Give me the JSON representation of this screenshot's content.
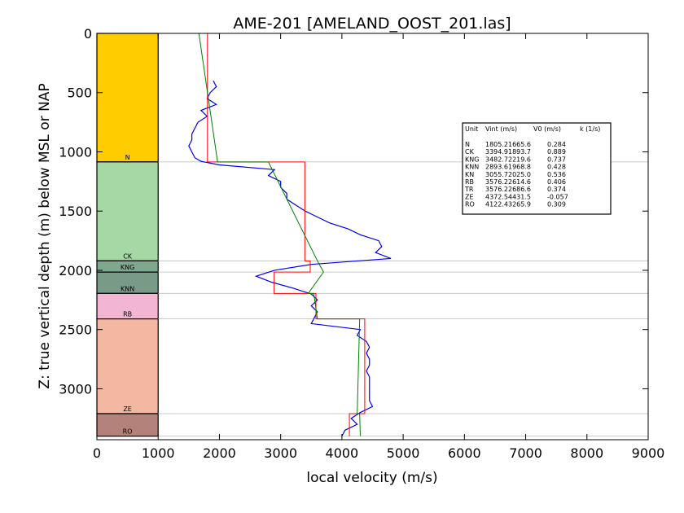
{
  "chart_data": {
    "type": "line",
    "title": "AME-201 [AMELAND_OOST_201.las]",
    "xlabel": "local velocity (m/s)",
    "ylabel": "Z: true vertical depth (m) below MSL or NAP",
    "xlim": [
      0,
      9000
    ],
    "ylim": [
      3430,
      0
    ],
    "y_inverted": true,
    "x_ticks": [
      "0",
      "1000",
      "2000",
      "3000",
      "4000",
      "5000",
      "6000",
      "7000",
      "8000",
      "9000"
    ],
    "y_ticks": [
      "0",
      "500",
      "1000",
      "1500",
      "2000",
      "2500",
      "3000"
    ],
    "grid": false,
    "colors": {
      "log": "#0000ee",
      "interval_velocity": "#ff0000",
      "model_velocity": "#008000",
      "boundary": "#bbbbbb"
    },
    "units": [
      {
        "name": "N",
        "top": 0,
        "base": 1085,
        "color": "#FFCC00",
        "vint": 1805.2,
        "v0": 1665.6,
        "k": 0.284
      },
      {
        "name": "CK",
        "top": 1085,
        "base": 1920,
        "color": "#A6D8A6",
        "vint": 3394.9,
        "v0": 1893.7,
        "k": 0.889
      },
      {
        "name": "KNG",
        "top": 1920,
        "base": 2015,
        "color": "#7FA88F",
        "vint": 3482.7,
        "v0": 2219.6,
        "k": 0.737
      },
      {
        "name": "KNN",
        "top": 2015,
        "base": 2195,
        "color": "#7A9A88",
        "vint": 2893.6,
        "v0": 1968.8,
        "k": 0.428
      },
      {
        "name": "RB",
        "top": 2195,
        "base": 2410,
        "color": "#F2B6D2",
        "vint": 3576.2,
        "v0": 2614.6,
        "k": 0.406
      },
      {
        "name": "ZE",
        "top": 2410,
        "base": 3210,
        "color": "#F2B8A2",
        "vint": 4372.5,
        "v0": 4431.5,
        "k": -0.057
      },
      {
        "name": "RO",
        "top": 3210,
        "base": 3400,
        "color": "#B3827A",
        "vint": 4122.4,
        "v0": 3265.9,
        "k": 0.309
      }
    ],
    "legend": {
      "placement": "right",
      "header": [
        "Unit",
        "Vint (m/s)",
        "V0 (m/s)",
        "k (1/s)"
      ],
      "rows": [
        [
          "N",
          "1805.2",
          "1665.6",
          "0.284"
        ],
        [
          "CK",
          "3394.9",
          "1893.7",
          "0.889"
        ],
        [
          "KNG",
          "3482.7",
          "2219.6",
          "0.737"
        ],
        [
          "KNN",
          "2893.6",
          "1968.8",
          "0.428"
        ],
        [
          "KN",
          "3055.7",
          "2025.0",
          "0.536"
        ],
        [
          "RB",
          "3576.2",
          "2614.6",
          "0.406"
        ],
        [
          "TR",
          "3576.2",
          "2686.6",
          "0.374"
        ],
        [
          "ZE",
          "4372.5",
          "4431.5",
          "-0.057"
        ],
        [
          "RO",
          "4122.4",
          "3265.9",
          "0.309"
        ]
      ]
    },
    "velocity_log": {
      "depth": [
        400,
        450,
        500,
        550,
        600,
        650,
        700,
        750,
        800,
        850,
        900,
        950,
        1000,
        1050,
        1080,
        1110,
        1150,
        1200,
        1250,
        1300,
        1350,
        1400,
        1450,
        1500,
        1550,
        1600,
        1650,
        1700,
        1750,
        1800,
        1850,
        1900,
        1950,
        2000,
        2050,
        2100,
        2150,
        2200,
        2250,
        2300,
        2350,
        2400,
        2450,
        2500,
        2550,
        2600,
        2650,
        2700,
        2750,
        2800,
        2850,
        2900,
        2950,
        3000,
        3050,
        3100,
        3150,
        3200,
        3250,
        3300,
        3350,
        3400
      ],
      "velocity": [
        1900,
        1950,
        1850,
        1800,
        1950,
        1700,
        1800,
        1650,
        1600,
        1550,
        1550,
        1500,
        1550,
        1600,
        1700,
        2000,
        2900,
        2800,
        3000,
        3000,
        3100,
        3100,
        3250,
        3400,
        3600,
        3800,
        4100,
        4300,
        4600,
        4650,
        4550,
        4800,
        3500,
        2900,
        2600,
        2850,
        3200,
        3500,
        3600,
        3500,
        3600,
        3550,
        3500,
        4300,
        4250,
        4400,
        4450,
        4400,
        4450,
        4450,
        4400,
        4450,
        4450,
        4450,
        4450,
        4450,
        4500,
        4300,
        4150,
        4250,
        4050,
        4000
      ]
    },
    "model_velocity": {
      "depth": [
        0,
        1085,
        1085,
        1920,
        2015,
        2195,
        2195,
        2410,
        2410,
        3210,
        3210,
        3400
      ],
      "velocity": [
        1665,
        1970,
        2800,
        3600,
        3700,
        3450,
        3540,
        3600,
        4290,
        4250,
        4290,
        4300
      ]
    }
  }
}
